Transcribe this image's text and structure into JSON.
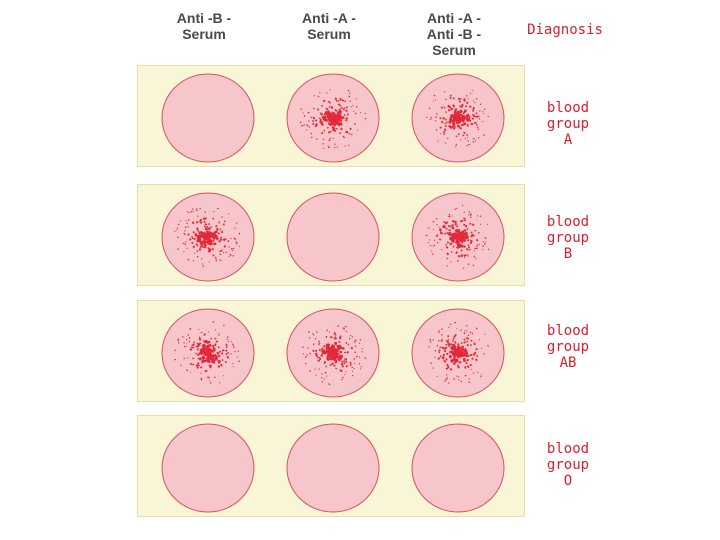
{
  "headers": {
    "col1": "Anti -B -\nSerum",
    "col2": "Anti -A -\nSerum",
    "col3": "Anti -A -\nAnti -B -\nSerum",
    "diagnosis": "Diagnosis"
  },
  "colors": {
    "strip": "#f9f6d8",
    "well_fill": "#f6c6ca",
    "well_edge": "#d9525a",
    "clump": "#e3283a",
    "text_red": "#d8202a",
    "header_text": "#4a4a4a"
  },
  "rows": [
    {
      "line1": "blood",
      "line2": "group",
      "line3": "A",
      "agglutination": [
        false,
        true,
        true
      ]
    },
    {
      "line1": "blood",
      "line2": "group",
      "line3": "B",
      "agglutination": [
        true,
        false,
        true
      ]
    },
    {
      "line1": "blood",
      "line2": "group",
      "line3": "AB",
      "agglutination": [
        true,
        true,
        true
      ]
    },
    {
      "line1": "blood",
      "line2": "group",
      "line3": "O",
      "agglutination": [
        false,
        false,
        false
      ]
    }
  ]
}
